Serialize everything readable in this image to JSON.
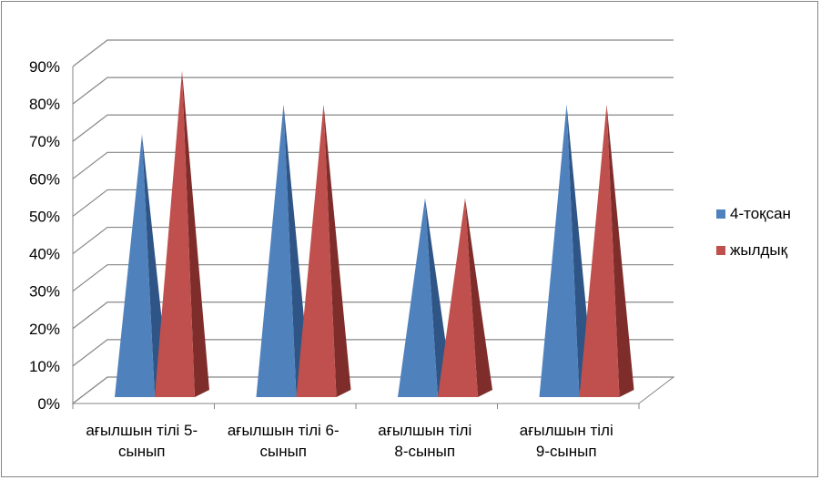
{
  "chart_data": {
    "type": "bar",
    "style": "3d-pyramid",
    "categories": [
      [
        "ағылшын  тілі 5-",
        "сынып"
      ],
      [
        "ағылшын  тілі 6-",
        "сынып"
      ],
      [
        "ағылшын  тілі",
        "8-сынып"
      ],
      [
        "ағылшын  тілі",
        "9-сынып"
      ]
    ],
    "series": [
      {
        "name": "4-тоқсан",
        "values": [
          68,
          76,
          51,
          76
        ],
        "color": "#4f81bd",
        "shade": "#2e5585"
      },
      {
        "name": "жылдық",
        "values": [
          85,
          76,
          51,
          76
        ],
        "color": "#c0504d",
        "shade": "#7f2d2b"
      }
    ],
    "ylim": [
      0,
      90
    ],
    "yticks": [
      "0%",
      "10%",
      "20%",
      "30%",
      "40%",
      "50%",
      "60%",
      "70%",
      "80%",
      "90%"
    ],
    "grid": true,
    "legend": "right",
    "title": "",
    "xlabel": "",
    "ylabel": ""
  }
}
